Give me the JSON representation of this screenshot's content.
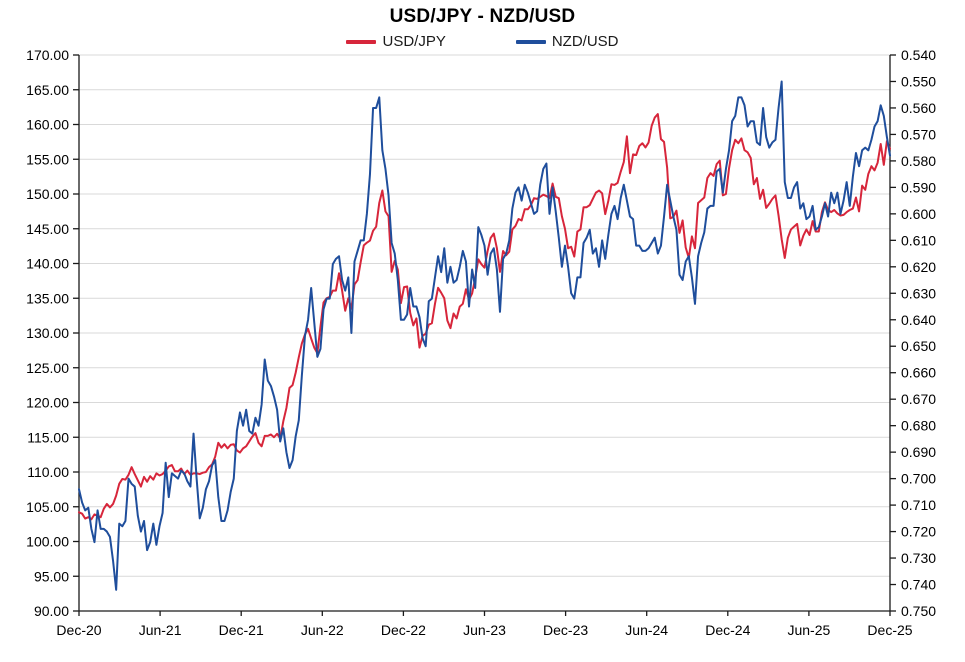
{
  "title": "USD/JPY - NZD/USD",
  "legend": {
    "items": [
      {
        "label": "USD/JPY",
        "color": "#d7263b"
      },
      {
        "label": "NZD/USD",
        "color": "#1f4e9c"
      }
    ]
  },
  "colors": {
    "usdjpy": "#d7263b",
    "nzdusd": "#1f4e9c",
    "gridline": "#d9d9d9",
    "axis": "#1a1a1a"
  },
  "chart_data": {
    "type": "line",
    "title": "USD/JPY - NZD/USD",
    "x_tick_labels": [
      "Dec-20",
      "Jun-21",
      "Dec-21",
      "Jun-22",
      "Dec-22",
      "Jun-23",
      "Dec-23",
      "Jun-24",
      "Dec-24",
      "Jun-25",
      "Dec-25"
    ],
    "y_left": {
      "min": 90,
      "max": 170,
      "step": 5,
      "tick_labels": [
        "170.00",
        "165.00",
        "160.00",
        "155.00",
        "150.00",
        "145.00",
        "140.00",
        "135.00",
        "130.00",
        "125.00",
        "120.00",
        "115.00",
        "110.00",
        "105.00",
        "100.00",
        "95.00",
        "90.00"
      ]
    },
    "y_right": {
      "min": 0.54,
      "max": 0.75,
      "step": 0.01,
      "inverted": true,
      "tick_labels": [
        "0.540",
        "0.550",
        "0.560",
        "0.570",
        "0.580",
        "0.590",
        "0.600",
        "0.610",
        "0.620",
        "0.630",
        "0.640",
        "0.650",
        "0.660",
        "0.670",
        "0.680",
        "0.690",
        "0.700",
        "0.710",
        "0.720",
        "0.730",
        "0.740",
        "0.750"
      ]
    },
    "grid": "horizontal",
    "legend_position": "top",
    "frequency": "weekly",
    "series": [
      {
        "name": "USD/JPY",
        "axis": "left",
        "color": "#d7263b",
        "values": [
          104.2,
          104.0,
          103.3,
          103.5,
          103.2,
          103.9,
          103.7,
          103.5,
          104.7,
          105.4,
          104.9,
          105.4,
          106.6,
          108.3,
          109.0,
          108.9,
          109.6,
          110.7,
          109.7,
          108.8,
          107.9,
          109.3,
          108.6,
          109.4,
          108.9,
          109.8,
          109.5,
          109.7,
          110.2,
          110.8,
          111.0,
          110.1,
          110.1,
          110.5,
          109.7,
          110.2,
          109.6,
          109.8,
          109.8,
          109.7,
          109.9,
          110.0,
          110.7,
          111.1,
          112.2,
          114.2,
          113.5,
          114.0,
          113.4,
          113.9,
          114.0,
          113.1,
          112.8,
          113.4,
          113.7,
          114.4,
          115.1,
          115.6,
          114.2,
          113.7,
          115.2,
          115.2,
          115.4,
          115.0,
          115.5,
          114.8,
          117.3,
          119.2,
          122.1,
          122.5,
          124.3,
          126.5,
          128.5,
          129.8,
          130.6,
          129.2,
          127.9,
          127.1,
          130.9,
          134.4,
          135.0,
          135.2,
          136.1,
          136.1,
          138.6,
          136.1,
          133.2,
          135.0,
          133.5,
          137.0,
          137.6,
          140.2,
          142.6,
          143.0,
          143.3,
          144.7,
          145.3,
          148.7,
          150.5,
          147.5,
          146.8,
          138.8,
          140.4,
          139.1,
          134.3,
          136.6,
          136.7,
          132.9,
          131.1,
          132.1,
          127.9,
          129.6,
          129.9,
          131.2,
          131.4,
          134.2,
          136.5,
          135.8,
          135.0,
          131.8,
          130.7,
          132.8,
          132.1,
          133.8,
          134.2,
          136.3,
          134.8,
          135.7,
          137.9,
          140.6,
          139.9,
          139.4,
          141.8,
          143.7,
          144.3,
          142.2,
          138.8,
          141.8,
          141.2,
          141.7,
          144.9,
          145.4,
          146.4,
          146.2,
          147.8,
          147.8,
          148.4,
          149.4,
          149.3,
          149.6,
          149.9,
          149.7,
          149.4,
          151.5,
          149.6,
          149.4,
          146.8,
          145.0,
          142.2,
          142.4,
          141.0,
          144.6,
          144.9,
          148.1,
          148.1,
          148.4,
          149.3,
          150.2,
          150.5,
          150.1,
          147.1,
          149.0,
          151.4,
          151.3,
          151.6,
          153.2,
          154.6,
          158.3,
          153.0,
          155.7,
          155.6,
          156.9,
          157.3,
          156.7,
          157.4,
          159.8,
          161.0,
          161.5,
          157.9,
          157.5,
          153.8,
          146.5,
          146.7,
          147.6,
          144.4,
          146.2,
          142.3,
          140.8,
          143.9,
          142.2,
          148.7,
          149.1,
          149.5,
          152.3,
          153.0,
          152.6,
          154.3,
          154.8,
          149.8,
          150.0,
          153.7,
          156.3,
          157.8,
          157.3,
          158.0,
          156.3,
          156.0,
          155.2,
          151.4,
          152.3,
          149.3,
          150.6,
          148.0,
          148.6,
          149.3,
          149.8,
          146.9,
          143.5,
          140.8,
          143.7,
          144.9,
          145.3,
          145.7,
          142.6,
          144.0,
          144.9,
          144.1,
          146.1,
          144.6,
          144.6,
          147.4,
          148.8,
          147.7,
          147.4,
          147.7,
          147.2,
          146.9,
          147.0,
          147.4,
          147.7,
          147.9,
          149.5,
          147.5,
          151.2,
          150.6,
          152.9,
          154.0,
          153.4,
          154.5,
          157.2,
          154.2,
          157.6,
          156.5
        ]
      },
      {
        "name": "NZD/USD",
        "axis": "right",
        "color": "#1f4e9c",
        "values": [
          0.704,
          0.709,
          0.712,
          0.711,
          0.719,
          0.724,
          0.712,
          0.719,
          0.719,
          0.72,
          0.722,
          0.731,
          0.742,
          0.717,
          0.718,
          0.716,
          0.7,
          0.702,
          0.703,
          0.714,
          0.72,
          0.716,
          0.727,
          0.724,
          0.717,
          0.725,
          0.718,
          0.713,
          0.694,
          0.707,
          0.698,
          0.699,
          0.7,
          0.697,
          0.698,
          0.701,
          0.703,
          0.683,
          0.7,
          0.715,
          0.711,
          0.704,
          0.701,
          0.695,
          0.693,
          0.707,
          0.716,
          0.716,
          0.712,
          0.705,
          0.7,
          0.682,
          0.675,
          0.68,
          0.674,
          0.682,
          0.683,
          0.677,
          0.68,
          0.672,
          0.655,
          0.663,
          0.665,
          0.669,
          0.674,
          0.686,
          0.681,
          0.69,
          0.696,
          0.693,
          0.684,
          0.678,
          0.661,
          0.646,
          0.64,
          0.628,
          0.641,
          0.654,
          0.651,
          0.636,
          0.632,
          0.632,
          0.619,
          0.617,
          0.616,
          0.625,
          0.629,
          0.624,
          0.645,
          0.618,
          0.614,
          0.61,
          0.61,
          0.6,
          0.585,
          0.56,
          0.56,
          0.556,
          0.576,
          0.583,
          0.593,
          0.611,
          0.615,
          0.625,
          0.64,
          0.64,
          0.638,
          0.628,
          0.635,
          0.635,
          0.639,
          0.647,
          0.65,
          0.633,
          0.632,
          0.624,
          0.616,
          0.622,
          0.613,
          0.626,
          0.62,
          0.626,
          0.625,
          0.62,
          0.614,
          0.618,
          0.635,
          0.621,
          0.628,
          0.605,
          0.608,
          0.612,
          0.623,
          0.615,
          0.613,
          0.621,
          0.637,
          0.617,
          0.615,
          0.61,
          0.598,
          0.592,
          0.59,
          0.595,
          0.589,
          0.592,
          0.596,
          0.6,
          0.599,
          0.589,
          0.583,
          0.581,
          0.6,
          0.59,
          0.599,
          0.609,
          0.62,
          0.612,
          0.62,
          0.63,
          0.632,
          0.624,
          0.624,
          0.611,
          0.609,
          0.606,
          0.615,
          0.613,
          0.62,
          0.61,
          0.617,
          0.608,
          0.6,
          0.597,
          0.602,
          0.594,
          0.589,
          0.595,
          0.601,
          0.602,
          0.612,
          0.612,
          0.614,
          0.614,
          0.613,
          0.611,
          0.609,
          0.615,
          0.612,
          0.601,
          0.589,
          0.595,
          0.601,
          0.606,
          0.623,
          0.625,
          0.618,
          0.616,
          0.624,
          0.634,
          0.616,
          0.611,
          0.607,
          0.598,
          0.597,
          0.597,
          0.584,
          0.583,
          0.592,
          0.583,
          0.576,
          0.565,
          0.563,
          0.556,
          0.556,
          0.559,
          0.567,
          0.565,
          0.565,
          0.573,
          0.574,
          0.56,
          0.571,
          0.575,
          0.573,
          0.572,
          0.56,
          0.55,
          0.588,
          0.594,
          0.594,
          0.59,
          0.588,
          0.598,
          0.596,
          0.602,
          0.601,
          0.597,
          0.606,
          0.605,
          0.601,
          0.596,
          0.601,
          0.592,
          0.596,
          0.592,
          0.6,
          0.595,
          0.588,
          0.597,
          0.586,
          0.577,
          0.582,
          0.576,
          0.575,
          0.576,
          0.572,
          0.567,
          0.565,
          0.559,
          0.563,
          0.571,
          0.578
        ]
      }
    ]
  }
}
